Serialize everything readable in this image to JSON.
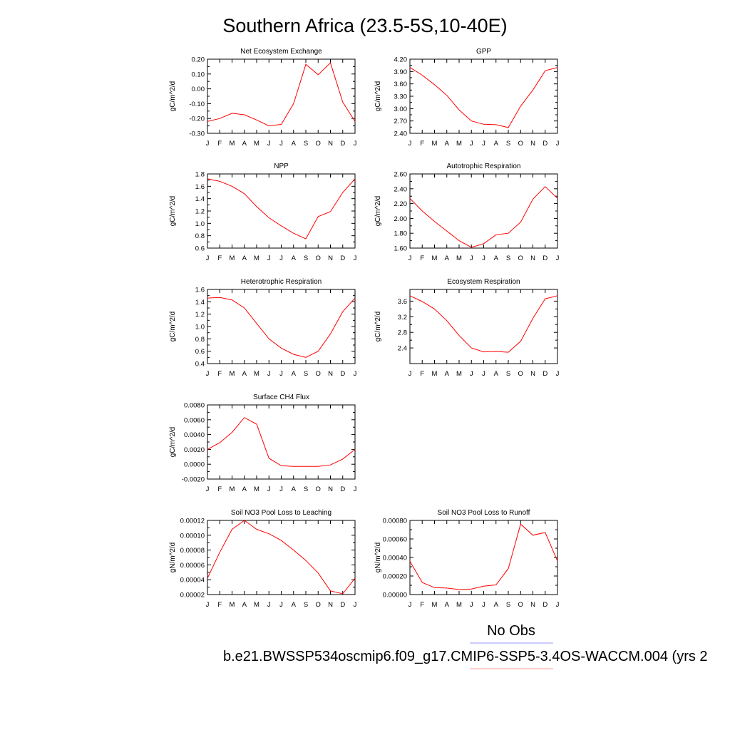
{
  "title": "Southern Africa (23.5-5S,10-40E)",
  "legend": {
    "obs_label": "No Obs",
    "obs_color": "#9999ff",
    "case_label": "b.e21.BWSSP534oscmip6.f09_g17.CMIP6-SSP5-3.4OS-WACCM.004 (yrs 2",
    "case_color": "#ff9999"
  },
  "line_color": "#ff0000",
  "months": [
    "J",
    "F",
    "M",
    "A",
    "M",
    "J",
    "J",
    "A",
    "S",
    "O",
    "N",
    "D",
    "J"
  ],
  "chart_data": [
    {
      "type": "line",
      "title": "Net Ecosystem Exchange",
      "ylabel": "gC/m^2/d",
      "ylim": [
        -0.3,
        0.2
      ],
      "yticks": [
        "-0.30",
        "-0.20",
        "-0.10",
        "0.00",
        "0.10",
        "0.20"
      ],
      "values": [
        -0.22,
        -0.2,
        -0.165,
        -0.175,
        -0.21,
        -0.25,
        -0.24,
        -0.1,
        0.165,
        0.095,
        0.175,
        -0.09,
        -0.22
      ]
    },
    {
      "type": "line",
      "title": "GPP",
      "ylabel": "gC/m^2/d",
      "ylim": [
        2.4,
        4.2
      ],
      "yticks": [
        "2.40",
        "2.70",
        "3.00",
        "3.30",
        "3.60",
        "3.90",
        "4.20"
      ],
      "values": [
        4.0,
        3.81,
        3.58,
        3.32,
        2.97,
        2.7,
        2.62,
        2.61,
        2.54,
        3.06,
        3.45,
        3.92,
        4.0
      ]
    },
    {
      "type": "line",
      "title": "NPP",
      "ylabel": "gC/m^2/d",
      "ylim": [
        0.6,
        1.8
      ],
      "yticks": [
        "0.6",
        "0.8",
        "1.0",
        "1.2",
        "1.4",
        "1.6",
        "1.8"
      ],
      "values": [
        1.72,
        1.68,
        1.6,
        1.48,
        1.27,
        1.09,
        0.96,
        0.84,
        0.75,
        1.11,
        1.19,
        1.5,
        1.72
      ]
    },
    {
      "type": "line",
      "title": "Autotrophic Respiration",
      "ylabel": "gC/m^2/d",
      "ylim": [
        1.6,
        2.6
      ],
      "yticks": [
        "1.60",
        "1.80",
        "2.00",
        "2.20",
        "2.40",
        "2.60"
      ],
      "values": [
        2.27,
        2.1,
        1.96,
        1.83,
        1.7,
        1.61,
        1.66,
        1.78,
        1.8,
        1.95,
        2.26,
        2.43,
        2.27
      ]
    },
    {
      "type": "line",
      "title": "Heterotrophic Respiration",
      "ylabel": "gC/m^2/d",
      "ylim": [
        0.4,
        1.6
      ],
      "yticks": [
        "0.4",
        "0.6",
        "0.8",
        "1.0",
        "1.2",
        "1.4",
        "1.6"
      ],
      "values": [
        1.46,
        1.47,
        1.43,
        1.3,
        1.05,
        0.8,
        0.65,
        0.55,
        0.5,
        0.6,
        0.88,
        1.24,
        1.46
      ]
    },
    {
      "type": "line",
      "title": "Ecosystem Respiration",
      "ylabel": "gC/m^2/d",
      "ylim": [
        2.0,
        3.9
      ],
      "yticks": [
        "2.4",
        "2.8",
        "3.2",
        "3.6"
      ],
      "ytick_values": [
        2.4,
        2.8,
        3.2,
        3.6
      ],
      "values": [
        3.74,
        3.59,
        3.4,
        3.1,
        2.72,
        2.4,
        2.3,
        2.31,
        2.29,
        2.57,
        3.16,
        3.66,
        3.74
      ]
    },
    {
      "type": "line",
      "title": "Surface CH4 Flux",
      "ylabel": "gC/m^2/d",
      "ylim": [
        -0.002,
        0.008
      ],
      "yticks": [
        "-0.0020",
        "0.0000",
        "0.0020",
        "0.0040",
        "0.0060",
        "0.0080"
      ],
      "values": [
        0.002,
        0.0029,
        0.0043,
        0.0063,
        0.0054,
        0.0008,
        -0.0002,
        -0.0003,
        -0.0003,
        -0.0003,
        -0.0001,
        0.0007,
        0.002
      ]
    },
    {
      "type": "line",
      "title": "Soil NO3 Pool Loss to Leaching",
      "ylabel": "gN/m^2/d",
      "ylim": [
        2e-05,
        0.00012
      ],
      "yticks": [
        "0.00002",
        "0.00004",
        "0.00006",
        "0.00008",
        "0.00010",
        "0.00012"
      ],
      "values": [
        4.2e-05,
        7.7e-05,
        0.000108,
        0.00012,
        0.000108,
        0.000102,
        9.3e-05,
        8e-05,
        6.6e-05,
        4.9e-05,
        2.5e-05,
        2.1e-05,
        4.2e-05
      ]
    },
    {
      "type": "line",
      "title": "Soil NO3 Pool Loss to Runoff",
      "ylabel": "gN/m^2/d",
      "ylim": [
        0.0,
        0.0008
      ],
      "yticks": [
        "0.00000",
        "0.00020",
        "0.00040",
        "0.00060",
        "0.00080"
      ],
      "values": [
        0.00036,
        0.00013,
        7.5e-05,
        7e-05,
        5.5e-05,
        6e-05,
        9e-05,
        0.000105,
        0.00028,
        0.00076,
        0.00064,
        0.00067,
        0.00036
      ]
    }
  ]
}
